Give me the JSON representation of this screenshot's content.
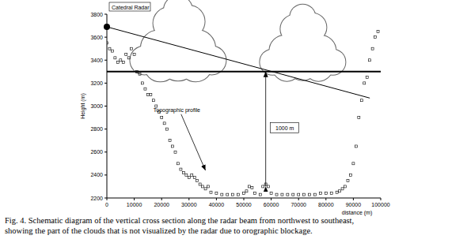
{
  "chart_data": {
    "type": "scatter",
    "marker": "square",
    "color": "#000000",
    "x_label": "distance (m)",
    "y_label": "Height (m)",
    "xlim": [
      0,
      100000
    ],
    "ylim": [
      2200,
      3800
    ],
    "xticks": [
      0,
      10000,
      20000,
      30000,
      40000,
      50000,
      60000,
      70000,
      80000,
      90000,
      100000
    ],
    "yticks": [
      2200,
      2400,
      2600,
      2800,
      3000,
      3200,
      3400,
      3600,
      3800
    ],
    "grid": false,
    "x": [
      0,
      1000,
      2000,
      3000,
      4000,
      5000,
      6000,
      7000,
      8000,
      9000,
      10000,
      11000,
      12000,
      13000,
      14000,
      15000,
      16000,
      17000,
      18000,
      19000,
      20000,
      21000,
      22000,
      23000,
      24000,
      25000,
      26000,
      27000,
      28000,
      29000,
      30000,
      31000,
      32000,
      33000,
      34000,
      35000,
      36000,
      37000,
      38000,
      40000,
      42000,
      44000,
      46000,
      48000,
      50000,
      51000,
      52000,
      53000,
      54000,
      56000,
      57000,
      58000,
      59000,
      60000,
      62000,
      64000,
      66000,
      68000,
      70000,
      72000,
      74000,
      76000,
      78000,
      80000,
      82000,
      84000,
      85000,
      86000,
      87000,
      88000,
      89000,
      90000,
      91000,
      92000,
      93000,
      94000,
      95000,
      96000,
      97000,
      98000,
      99000
    ],
    "values": [
      3550,
      3500,
      3480,
      3420,
      3380,
      3400,
      3380,
      3450,
      3420,
      3500,
      3450,
      3300,
      3280,
      3200,
      3150,
      3100,
      3100,
      3050,
      3000,
      2950,
      2900,
      2850,
      2800,
      2700,
      2650,
      2600,
      2500,
      2450,
      2420,
      2400,
      2380,
      2400,
      2380,
      2350,
      2320,
      2300,
      2280,
      2300,
      2250,
      2240,
      2230,
      2230,
      2230,
      2230,
      2240,
      2260,
      2300,
      2290,
      2240,
      2230,
      2300,
      2320,
      2300,
      2240,
      2230,
      2230,
      2230,
      2230,
      2230,
      2230,
      2230,
      2230,
      2240,
      2240,
      2240,
      2250,
      2260,
      2280,
      2300,
      2350,
      2400,
      2500,
      2650,
      2900,
      3050,
      3200,
      3250,
      3400,
      3500,
      3600,
      3650
    ],
    "reference_line": 3300,
    "radar_beam": {
      "x": [
        0,
        96000
      ],
      "values": [
        3690,
        3070
      ]
    },
    "annotations": [
      {
        "text": "Catedral Radar",
        "x": 0,
        "y": 3690
      },
      {
        "text": "Topographic profile",
        "x": 17000,
        "y": 2950,
        "arrow_x": 36000,
        "arrow_y": 2440
      },
      {
        "text": "1000 m",
        "x": 58000,
        "y": 2300,
        "y_end": 3300
      }
    ],
    "caption": [
      "Fig. 4. Schematic diagram of the vertical cross section along the radar beam from northwest to southeast,",
      "showing the part of the clouds that is not visualized  by the radar due to orographic blockage."
    ]
  }
}
